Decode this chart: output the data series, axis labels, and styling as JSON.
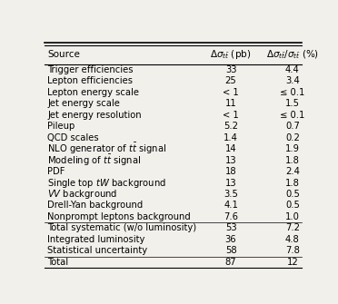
{
  "rows": [
    [
      "Trigger efficiencies",
      "33",
      "4.4"
    ],
    [
      "Lepton efficiencies",
      "25",
      "3.4"
    ],
    [
      "Lepton energy scale",
      "< 1",
      "≤ 0.1"
    ],
    [
      "Jet energy scale",
      "11",
      "1.5"
    ],
    [
      "Jet energy resolution",
      "< 1",
      "≤ 0.1"
    ],
    [
      "Pileup",
      "5.2",
      "0.7"
    ],
    [
      "QCD scales",
      "1.4",
      "0.2"
    ],
    [
      "NLO generator of $t\\bar{t}$ signal",
      "14",
      "1.9"
    ],
    [
      "Modeling of $t\\bar{t}$ signal",
      "13",
      "1.8"
    ],
    [
      "PDF",
      "18",
      "2.4"
    ],
    [
      "Single top $tW$ background",
      "13",
      "1.8"
    ],
    [
      "$VV$ background",
      "3.5",
      "0.5"
    ],
    [
      "Drell-Yan background",
      "4.1",
      "0.5"
    ],
    [
      "Nonprompt leptons background",
      "7.6",
      "1.0"
    ],
    [
      "Total systematic (w/o luminosity)",
      "53",
      "7.2"
    ],
    [
      "Integrated luminosity",
      "36",
      "4.8"
    ],
    [
      "Statistical uncertainty",
      "58",
      "7.8"
    ],
    [
      "Total",
      "87",
      "12"
    ]
  ],
  "separator_after_rows": [
    13,
    16
  ],
  "bg_color": "#f2f0eb",
  "font_size": 7.2,
  "header_font_size": 7.5
}
